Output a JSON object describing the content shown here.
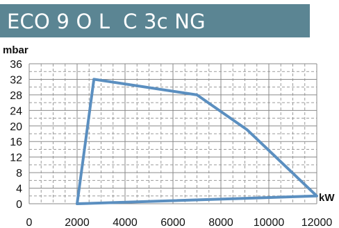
{
  "header": {
    "title": "ECO 9 O L  C 3c NG"
  },
  "chart_data": {
    "type": "line",
    "title": "ECO 9 O L  C 3c NG",
    "ylabel": "mbar",
    "xlabel": "kW",
    "xlim": [
      0,
      12000
    ],
    "ylim": [
      0,
      36
    ],
    "x_ticks": [
      0,
      2000,
      4000,
      6000,
      8000,
      10000,
      12000
    ],
    "y_ticks": [
      0,
      4,
      8,
      12,
      16,
      20,
      24,
      28,
      32,
      36
    ],
    "grid": true,
    "line_color": "#5b8fc0",
    "series": [
      {
        "x": [
          2000,
          2700,
          7000,
          9100,
          12000,
          2000
        ],
        "y": [
          0,
          32,
          28,
          19,
          2,
          0
        ]
      }
    ]
  }
}
